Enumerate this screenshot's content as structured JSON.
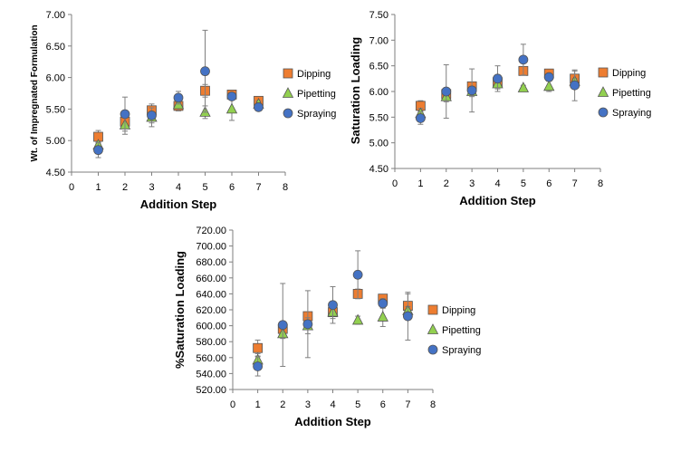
{
  "colors": {
    "dipping": "#ED7D31",
    "pipetting": "#92D050",
    "spraying": "#4472C4",
    "marker_edge": "#555555",
    "axis": "#7f7f7f",
    "errorbar": "#7f7f7f"
  },
  "chart_data": [
    {
      "type": "scatter",
      "title": "",
      "xlabel": "Addition Step",
      "ylabel": "Wt. of Impregnated Formulation",
      "xlim": [
        0,
        8
      ],
      "ylim": [
        4.5,
        7.0
      ],
      "x_ticks": [
        "0",
        "1",
        "2",
        "3",
        "4",
        "5",
        "6",
        "7",
        "8"
      ],
      "y_ticks": [
        "4.50",
        "5.00",
        "5.50",
        "6.00",
        "6.50",
        "7.00"
      ],
      "grid": false,
      "legend_position": "right",
      "series": [
        {
          "name": "Dipping",
          "marker": "square",
          "x": [
            1,
            2,
            3,
            4,
            5,
            6,
            7
          ],
          "y": [
            5.06,
            5.3,
            5.48,
            5.55,
            5.79,
            5.73,
            5.63
          ],
          "err": [
            0.1,
            0.05,
            0.1,
            0.05,
            0.1,
            0.05,
            0.05
          ]
        },
        {
          "name": "Pipetting",
          "marker": "triangle",
          "x": [
            1,
            2,
            3,
            4,
            5,
            6,
            7
          ],
          "y": [
            4.93,
            5.25,
            5.37,
            5.57,
            5.45,
            5.5,
            5.58
          ],
          "err": [
            0.05,
            0.15,
            0.15,
            0.1,
            0.1,
            0.18,
            0.05
          ]
        },
        {
          "name": "Spraying",
          "marker": "circle",
          "x": [
            1,
            2,
            3,
            4,
            5,
            6,
            7
          ],
          "y": [
            4.85,
            5.42,
            5.4,
            5.68,
            6.1,
            5.7,
            5.53
          ],
          "err": [
            0.12,
            0.27,
            0.12,
            0.1,
            0.65,
            0.05,
            0.05
          ]
        }
      ]
    },
    {
      "type": "scatter",
      "title": "",
      "xlabel": "Addition Step",
      "ylabel": "Saturation Loading",
      "xlim": [
        0,
        8
      ],
      "ylim": [
        4.5,
        7.5
      ],
      "x_ticks": [
        "0",
        "1",
        "2",
        "3",
        "4",
        "5",
        "6",
        "7",
        "8"
      ],
      "y_ticks": [
        "4.50",
        "5.00",
        "5.50",
        "6.00",
        "6.50",
        "7.00",
        "7.50"
      ],
      "grid": false,
      "legend_position": "right",
      "series": [
        {
          "name": "Dipping",
          "marker": "square",
          "x": [
            1,
            2,
            3,
            4,
            5,
            6,
            7
          ],
          "y": [
            5.72,
            5.95,
            6.1,
            6.18,
            6.4,
            6.35,
            6.25
          ],
          "err": [
            0.1,
            0.05,
            0.05,
            0.05,
            0.05,
            0.05,
            0.15
          ]
        },
        {
          "name": "Pipetting",
          "marker": "triangle",
          "x": [
            1,
            2,
            3,
            4,
            5,
            6,
            7
          ],
          "y": [
            5.57,
            5.9,
            6.0,
            6.15,
            6.07,
            6.1,
            6.2
          ],
          "err": [
            0.1,
            0.1,
            0.1,
            0.1,
            0.05,
            0.1,
            0.05
          ]
        },
        {
          "name": "Spraying",
          "marker": "circle",
          "x": [
            1,
            2,
            3,
            4,
            5,
            6,
            7
          ],
          "y": [
            5.48,
            6.0,
            6.02,
            6.25,
            6.62,
            6.28,
            6.12
          ],
          "err": [
            0.12,
            0.52,
            0.42,
            0.25,
            0.3,
            0.05,
            0.3
          ]
        }
      ]
    },
    {
      "type": "scatter",
      "title": "",
      "xlabel": "Addition Step",
      "ylabel": "%Saturation Loading",
      "xlim": [
        0,
        8
      ],
      "ylim": [
        520,
        720
      ],
      "x_ticks": [
        "0",
        "1",
        "2",
        "3",
        "4",
        "5",
        "6",
        "7",
        "8"
      ],
      "y_ticks": [
        "520.00",
        "540.00",
        "560.00",
        "580.00",
        "600.00",
        "620.00",
        "640.00",
        "660.00",
        "680.00",
        "700.00",
        "720.00"
      ],
      "grid": false,
      "legend_position": "right",
      "series": [
        {
          "name": "Dipping",
          "marker": "square",
          "x": [
            1,
            2,
            3,
            4,
            5,
            6,
            7
          ],
          "y": [
            572,
            596,
            612,
            617,
            640,
            634,
            625
          ],
          "err": [
            10,
            4,
            5,
            5,
            6,
            5,
            15
          ]
        },
        {
          "name": "Pipetting",
          "marker": "triangle",
          "x": [
            1,
            2,
            3,
            4,
            5,
            6,
            7
          ],
          "y": [
            557,
            590,
            600,
            617,
            607,
            611,
            619
          ],
          "err": [
            8,
            6,
            10,
            8,
            5,
            12,
            5
          ]
        },
        {
          "name": "Spraying",
          "marker": "circle",
          "x": [
            1,
            2,
            3,
            4,
            5,
            6,
            7
          ],
          "y": [
            549,
            601,
            602,
            626,
            664,
            628,
            612
          ],
          "err": [
            12,
            52,
            42,
            23,
            30,
            6,
            30
          ]
        }
      ]
    }
  ]
}
